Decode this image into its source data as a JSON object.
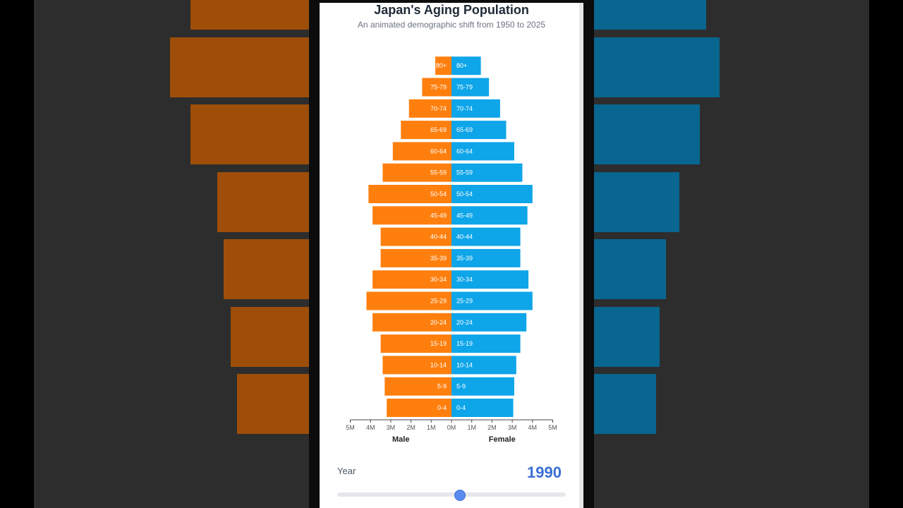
{
  "colors": {
    "male": "#ff7f0e",
    "female": "#0ea5e9",
    "year_accent": "#3b6fd4"
  },
  "chart_data": {
    "type": "bar",
    "subtype": "population-pyramid",
    "title": "Japan's Aging Population",
    "subtitle": "An animated demographic shift from 1950 to 2025",
    "categories": [
      "0-4",
      "5-9",
      "10-14",
      "15-19",
      "20-24",
      "25-29",
      "30-34",
      "35-39",
      "40-44",
      "45-49",
      "50-54",
      "55-59",
      "60-64",
      "65-69",
      "70-74",
      "75-79",
      "80+"
    ],
    "series": [
      {
        "name": "Male",
        "values": [
          3.2,
          3.3,
          3.4,
          3.5,
          3.9,
          4.2,
          3.9,
          3.5,
          3.5,
          3.9,
          4.1,
          3.4,
          2.9,
          2.5,
          2.1,
          1.45,
          0.8
        ]
      },
      {
        "name": "Female",
        "values": [
          3.05,
          3.1,
          3.2,
          3.4,
          3.7,
          4.0,
          3.8,
          3.4,
          3.4,
          3.75,
          4.0,
          3.5,
          3.1,
          2.7,
          2.4,
          1.85,
          1.45
        ]
      }
    ],
    "xlim": [
      -5,
      5
    ],
    "xticks": [
      "5M",
      "4M",
      "3M",
      "2M",
      "1M",
      "0M",
      "1M",
      "2M",
      "3M",
      "4M",
      "5M"
    ],
    "xlabel_left": "Male",
    "xlabel_right": "Female"
  },
  "controls": {
    "year_label": "Year",
    "year_value": "1990",
    "slider": {
      "min": 1950,
      "max": 2025,
      "value": 1990
    }
  }
}
